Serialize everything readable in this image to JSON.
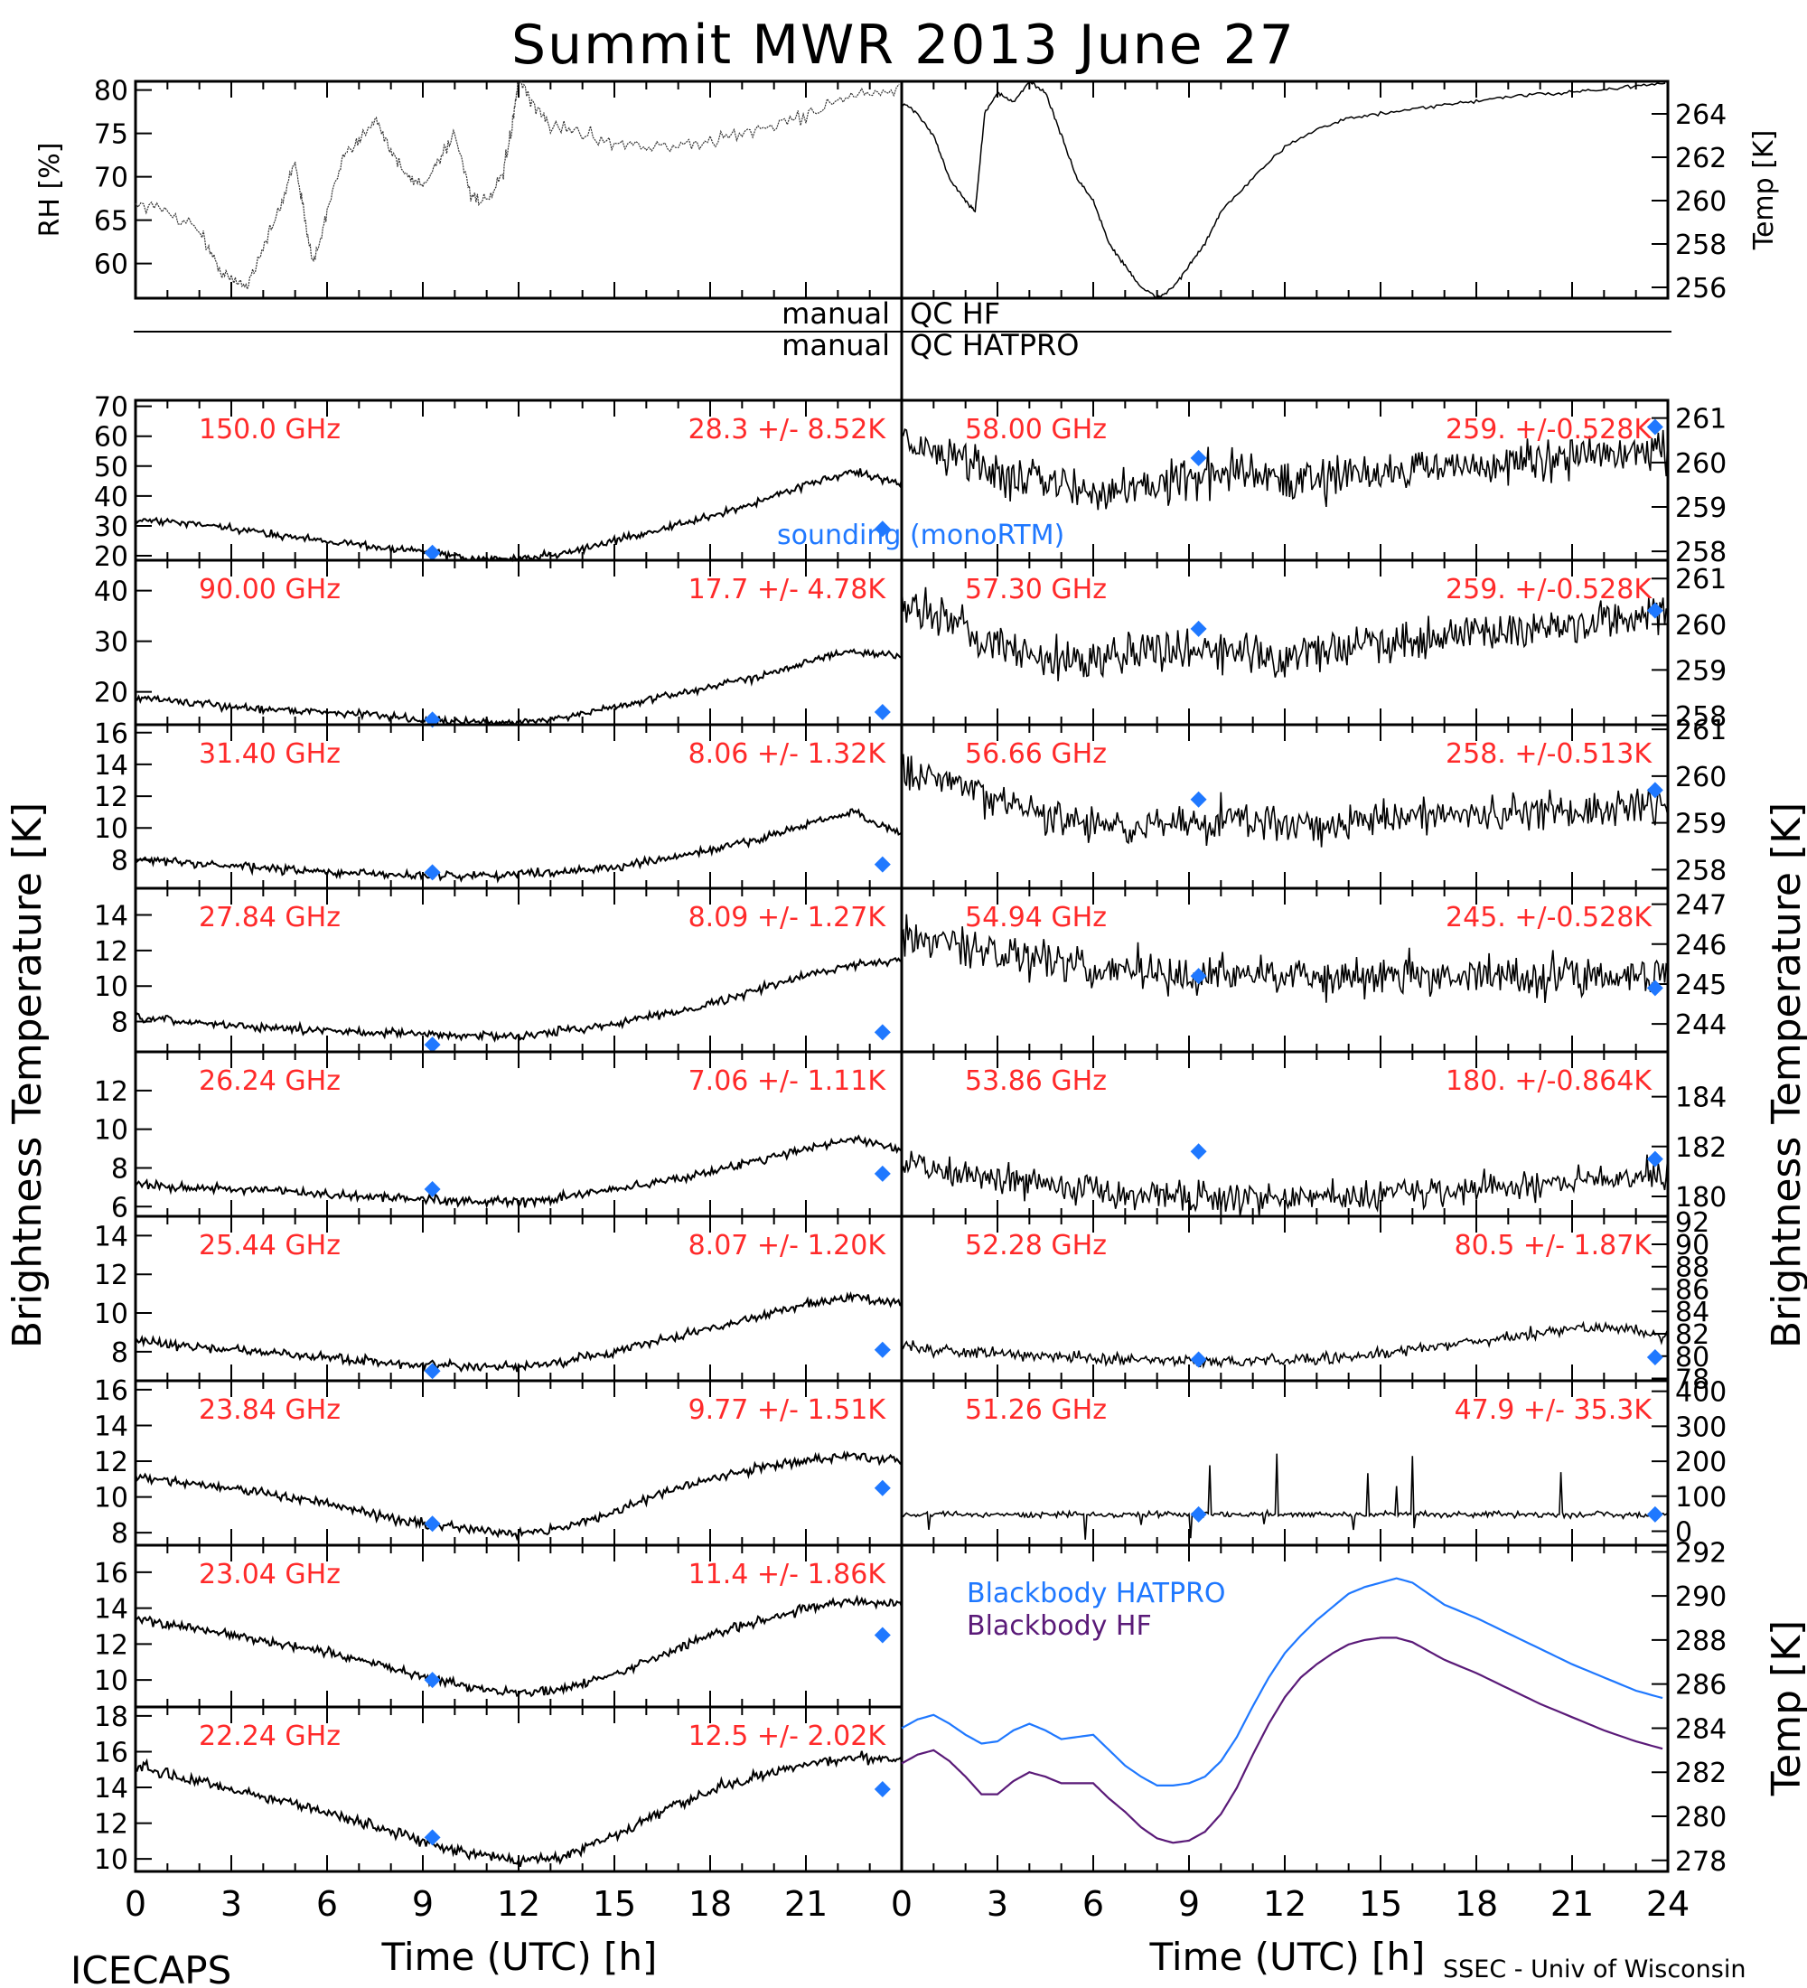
{
  "title": "Summit MWR 2013 June 27",
  "left_ylabel": "Brightness Temperature [K]",
  "right_ylabel": "Brightness Temperature [K]",
  "footer": {
    "left": "ICECAPS",
    "xlabel": "Time (UTC) [h]",
    "credit": "SSEC - Univ of Wisconsin"
  },
  "qc": {
    "manual_left_1": "manual",
    "qc_right_1": "QC HF",
    "manual_left_2": "manual",
    "qc_right_2": "QC HATPRO"
  },
  "sounding_label": "sounding (monoRTM)",
  "colors": {
    "trace": "#000000",
    "label": "#ff2a2a",
    "sounding": "#1f78ff",
    "bb_hatpro": "#1f78ff",
    "bb_hf": "#5a1a78"
  },
  "chart_data": [
    {
      "type": "line",
      "id": "rh",
      "ylabel": "RH [%]",
      "ylim": [
        56,
        81
      ],
      "yticks": [
        "60",
        "65",
        "70",
        "75",
        "80"
      ],
      "xlim": [
        0,
        24
      ],
      "x": [
        0,
        1,
        2,
        2.5,
        3,
        3.5,
        4,
        4.5,
        5,
        5.3,
        5.6,
        6,
        6.5,
        7,
        7.5,
        8,
        8.5,
        9,
        9.5,
        10,
        10.5,
        11,
        11.5,
        11.8,
        12,
        12.5,
        13,
        14,
        15,
        16,
        17,
        18,
        19,
        20,
        21,
        22,
        23,
        24
      ],
      "values": [
        67,
        66,
        64,
        60,
        58,
        57.5,
        62,
        66,
        72,
        65,
        60,
        66,
        72,
        74,
        77,
        73,
        70,
        69,
        72,
        75,
        68,
        67,
        70,
        76,
        81,
        78,
        76,
        75,
        74,
        73.5,
        73.5,
        74,
        75,
        76,
        77,
        79,
        79.5,
        80
      ]
    },
    {
      "type": "line",
      "id": "temp",
      "ylabel": "Temp [K]",
      "ylim": [
        255.5,
        265.5
      ],
      "yticks": [
        "256",
        "258",
        "260",
        "262",
        "264"
      ],
      "xlim": [
        0,
        24
      ],
      "x": [
        0,
        0.5,
        1,
        1.5,
        2,
        2.3,
        2.6,
        3,
        3.5,
        4,
        4.5,
        5,
        5.5,
        6,
        6.5,
        7,
        7.5,
        8,
        8.5,
        9,
        9.5,
        10,
        11,
        12,
        13,
        14,
        15,
        16,
        17,
        18,
        19,
        20,
        21,
        22,
        23,
        24
      ],
      "values": [
        264.5,
        264,
        263,
        261,
        260,
        259.5,
        264,
        265,
        264.5,
        265.5,
        265,
        263,
        261,
        260,
        258,
        257,
        256,
        255.5,
        256,
        257,
        258,
        259.5,
        261,
        262.5,
        263.3,
        263.8,
        264,
        264.2,
        264.4,
        264.6,
        264.8,
        264.9,
        265,
        265.1,
        265.3,
        265.4
      ]
    },
    {
      "type": "line",
      "id": "ch150",
      "channel": "150.0 GHz",
      "stats": "28.3 +/-  8.52K",
      "ylim": [
        18.5,
        72
      ],
      "yticks": [
        "20",
        "30",
        "40",
        "50",
        "60",
        "70"
      ],
      "base": [
        32,
        31,
        29,
        27,
        25,
        23,
        21.5,
        19,
        19,
        21,
        25,
        29,
        33,
        38,
        44,
        48,
        44
      ],
      "noise": 1.2,
      "sounding": [
        [
          9.3,
          21
        ],
        [
          23.4,
          29
        ]
      ]
    },
    {
      "type": "line",
      "id": "ch90",
      "channel": "90.00 GHz",
      "stats": "17.7 +/-  4.78K",
      "ylim": [
        13.5,
        46
      ],
      "yticks": [
        "20",
        "30",
        "40"
      ],
      "base": [
        19,
        18,
        17,
        16.5,
        16,
        15.5,
        14.5,
        14,
        14,
        15,
        17,
        19,
        21,
        23,
        26,
        28,
        27
      ],
      "noise": 0.7,
      "sounding": [
        [
          9.3,
          14.5
        ],
        [
          23.4,
          16
        ]
      ]
    },
    {
      "type": "line",
      "id": "ch3140",
      "channel": "31.40 GHz",
      "stats": "8.06 +/- 1.32K",
      "ylim": [
        6.2,
        16.5
      ],
      "yticks": [
        "8",
        "10",
        "12",
        "14",
        "16"
      ],
      "base": [
        8.1,
        7.8,
        7.6,
        7.4,
        7.2,
        7.1,
        7.0,
        7.0,
        7.1,
        7.3,
        7.5,
        8,
        8.6,
        9.3,
        10.2,
        11,
        9.5
      ],
      "noise": 0.25,
      "sounding": [
        [
          9.3,
          7.2
        ],
        [
          23.4,
          7.7
        ]
      ]
    },
    {
      "type": "line",
      "id": "ch2784",
      "channel": "27.84 GHz",
      "stats": "8.09 +/- 1.27K",
      "ylim": [
        6.3,
        15.5
      ],
      "yticks": [
        "8",
        "10",
        "12",
        "14"
      ],
      "base": [
        8.2,
        8.0,
        7.8,
        7.6,
        7.5,
        7.4,
        7.3,
        7.2,
        7.2,
        7.5,
        7.9,
        8.4,
        9,
        9.8,
        10.6,
        11.2,
        11.5
      ],
      "noise": 0.22,
      "sounding": [
        [
          9.3,
          6.7
        ],
        [
          23.4,
          7.4
        ]
      ]
    },
    {
      "type": "line",
      "id": "ch2624",
      "channel": "26.24 GHz",
      "stats": "7.06 +/- 1.11K",
      "ylim": [
        5.5,
        14
      ],
      "yticks": [
        "6",
        "8",
        "10",
        "12"
      ],
      "base": [
        7.2,
        7.0,
        6.9,
        6.8,
        6.6,
        6.5,
        6.4,
        6.3,
        6.2,
        6.5,
        6.9,
        7.3,
        7.8,
        8.4,
        9.0,
        9.5,
        9.0
      ],
      "noise": 0.22,
      "sounding": [
        [
          9.3,
          6.9
        ],
        [
          23.4,
          7.7
        ]
      ]
    },
    {
      "type": "line",
      "id": "ch2544",
      "channel": "25.44 GHz",
      "stats": "8.07 +/- 1.20K",
      "ylim": [
        6.5,
        15
      ],
      "yticks": [
        "8",
        "10",
        "12",
        "14"
      ],
      "base": [
        8.6,
        8.3,
        8.1,
        7.9,
        7.7,
        7.5,
        7.3,
        7.2,
        7.2,
        7.5,
        8,
        8.6,
        9.2,
        9.8,
        10.5,
        10.8,
        10.5
      ],
      "noise": 0.22,
      "sounding": [
        [
          9.3,
          7.0
        ],
        [
          23.4,
          8.1
        ]
      ]
    },
    {
      "type": "line",
      "id": "ch2384",
      "channel": "23.84 GHz",
      "stats": "9.77 +/- 1.51K",
      "ylim": [
        7.3,
        16.5
      ],
      "yticks": [
        "8",
        "10",
        "12",
        "14",
        "16"
      ],
      "base": [
        11.2,
        10.8,
        10.5,
        10.1,
        9.6,
        9.0,
        8.5,
        8.2,
        8.0,
        8.3,
        9.2,
        10.2,
        11,
        11.6,
        12.1,
        12.3,
        12.0
      ],
      "noise": 0.25,
      "sounding": [
        [
          9.3,
          8.5
        ],
        [
          23.4,
          10.5
        ]
      ]
    },
    {
      "type": "line",
      "id": "ch2304",
      "channel": "23.04 GHz",
      "stats": "11.4 +/- 1.86K",
      "ylim": [
        8.5,
        17.5
      ],
      "yticks": [
        "10",
        "12",
        "14",
        "16"
      ],
      "base": [
        13.4,
        13.0,
        12.5,
        12.0,
        11.5,
        10.9,
        10.2,
        9.6,
        9.3,
        9.5,
        10.3,
        11.4,
        12.5,
        13.3,
        14,
        14.4,
        14.2
      ],
      "noise": 0.25,
      "sounding": [
        [
          9.3,
          10.0
        ],
        [
          23.4,
          12.5
        ]
      ]
    },
    {
      "type": "line",
      "id": "ch2224",
      "channel": "22.24 GHz",
      "stats": "12.5 +/- 2.02K",
      "ylim": [
        9.3,
        18.5
      ],
      "yticks": [
        "10",
        "12",
        "14",
        "16",
        "18"
      ],
      "base": [
        15.2,
        14.5,
        13.9,
        13.3,
        12.6,
        11.8,
        11.0,
        10.3,
        9.9,
        10.2,
        11.3,
        12.6,
        13.8,
        14.6,
        15.3,
        15.7,
        15.6
      ],
      "noise": 0.3,
      "sounding": [
        [
          9.3,
          11.2
        ],
        [
          23.4,
          13.9
        ]
      ]
    },
    {
      "type": "line",
      "id": "ch5800",
      "channel": "58.00 GHz",
      "stats": "259. +/-0.528K",
      "ylim": [
        257.8,
        261.4
      ],
      "yticks": [
        "258",
        "259",
        "260",
        "261"
      ],
      "base": [
        260.6,
        260.2,
        259.8,
        259.6,
        259.3,
        259.5,
        259.7,
        259.8,
        259.6,
        259.7,
        259.8,
        259.9,
        259.9,
        260.0,
        260.1,
        260.2,
        260.3
      ],
      "noise": 0.45,
      "sounding": [
        [
          9.3,
          260.1
        ],
        [
          23.6,
          260.8
        ]
      ]
    },
    {
      "type": "line",
      "id": "ch5730",
      "channel": "57.30 GHz",
      "stats": "259. +/-0.528K",
      "ylim": [
        257.8,
        261.4
      ],
      "yticks": [
        "258",
        "259",
        "260",
        "261"
      ],
      "base": [
        260.4,
        260.0,
        259.6,
        259.3,
        259.2,
        259.4,
        259.5,
        259.4,
        259.3,
        259.5,
        259.6,
        259.7,
        259.8,
        259.9,
        260.0,
        260.1,
        260.2
      ],
      "noise": 0.45,
      "sounding": [
        [
          9.3,
          259.9
        ],
        [
          23.6,
          260.3
        ]
      ]
    },
    {
      "type": "line",
      "id": "ch5666",
      "channel": "56.66 GHz",
      "stats": "258. +/-0.513K",
      "ylim": [
        257.6,
        261.1
      ],
      "yticks": [
        "258",
        "259",
        "260",
        "261"
      ],
      "base": [
        260.1,
        259.8,
        259.5,
        259.2,
        258.9,
        258.9,
        259.0,
        259.1,
        259.0,
        259.0,
        259.1,
        259.1,
        259.2,
        259.2,
        259.3,
        259.3,
        259.4
      ],
      "noise": 0.4,
      "sounding": [
        [
          9.3,
          259.5
        ],
        [
          23.6,
          259.7
        ]
      ]
    },
    {
      "type": "line",
      "id": "ch5494",
      "channel": "54.94 GHz",
      "stats": "245. +/-0.528K",
      "ylim": [
        243.3,
        247.4
      ],
      "yticks": [
        "244",
        "245",
        "246",
        "247"
      ],
      "base": [
        246.3,
        246.0,
        245.8,
        245.6,
        245.4,
        245.3,
        245.2,
        245.3,
        245.2,
        245.2,
        245.2,
        245.2,
        245.3,
        245.2,
        245.2,
        245.2,
        245.3
      ],
      "noise": 0.5,
      "sounding": [
        [
          9.3,
          245.2
        ],
        [
          23.6,
          244.9
        ]
      ]
    },
    {
      "type": "line",
      "id": "ch5386",
      "channel": "53.86 GHz",
      "stats": "180. +/-0.864K",
      "ylim": [
        179.2,
        185.8
      ],
      "yticks": [
        "180",
        "182",
        "184"
      ],
      "base": [
        181.4,
        181.0,
        180.7,
        180.5,
        180.3,
        180.1,
        180.0,
        180.0,
        179.9,
        180.0,
        180.1,
        180.2,
        180.3,
        180.4,
        180.6,
        180.8,
        181.0
      ],
      "noise": 0.6,
      "sounding": [
        [
          9.3,
          181.8
        ],
        [
          23.6,
          181.5
        ]
      ]
    },
    {
      "type": "line",
      "id": "ch5228",
      "channel": "52.28 GHz",
      "stats": "80.5 +/-  1.87K",
      "ylim": [
        77.8,
        92.5
      ],
      "yticks": [
        "78",
        "80",
        "82",
        "84",
        "86",
        "88",
        "90",
        "92"
      ],
      "base": [
        80.8,
        80.5,
        80.2,
        80.0,
        79.8,
        79.7,
        79.6,
        79.5,
        79.6,
        79.8,
        80.2,
        80.8,
        81.3,
        81.9,
        82.5,
        82.6,
        81.5
      ],
      "noise": 0.5,
      "sounding": [
        [
          9.3,
          79.7
        ],
        [
          23.6,
          79.9
        ]
      ]
    },
    {
      "type": "line",
      "id": "ch5126",
      "channel": "51.26 GHz",
      "stats": "47.9 +/-  35.3K",
      "ylim": [
        -40,
        430
      ],
      "yticks": [
        "0",
        "100",
        "200",
        "300",
        "400"
      ],
      "base": [
        48,
        48,
        48,
        48,
        48,
        48,
        48,
        48,
        48,
        48,
        48,
        48,
        48,
        48,
        48,
        48,
        48
      ],
      "noise": 8,
      "sounding": [
        [
          9.3,
          48
        ],
        [
          23.6,
          48
        ]
      ]
    },
    {
      "type": "line",
      "id": "bb",
      "ylabel": "Temp [K]",
      "ylim": [
        277.5,
        292.3
      ],
      "yticks": [
        "278",
        "280",
        "282",
        "284",
        "286",
        "288",
        "290",
        "292"
      ],
      "legend": [
        "Blackbody HATPRO",
        "Blackbody HF"
      ],
      "x": [
        0,
        0.5,
        1,
        1.5,
        2,
        2.5,
        3,
        3.5,
        4,
        4.5,
        5,
        5.5,
        6,
        6.5,
        7,
        7.5,
        8,
        8.5,
        9,
        9.5,
        10,
        10.5,
        11,
        11.5,
        12,
        12.5,
        13,
        13.5,
        14,
        14.5,
        15,
        15.5,
        16,
        16.5,
        17,
        18,
        19,
        20,
        21,
        22,
        23,
        24
      ],
      "series": [
        {
          "name": "Blackbody HATPRO",
          "values": [
            284,
            284.4,
            284.6,
            284.2,
            283.7,
            283.3,
            283.4,
            283.9,
            284.2,
            283.9,
            283.5,
            283.6,
            283.7,
            283.0,
            282.3,
            281.8,
            281.4,
            281.4,
            281.5,
            281.8,
            282.5,
            283.6,
            285,
            286.3,
            287.4,
            288.2,
            288.9,
            289.5,
            290.1,
            290.4,
            290.6,
            290.8,
            290.6,
            290.1,
            289.6,
            289,
            288.3,
            287.6,
            286.9,
            286.3,
            285.7,
            285.3
          ]
        },
        {
          "name": "Blackbody HF",
          "values": [
            282.4,
            282.8,
            283.0,
            282.5,
            281.8,
            281.0,
            281.0,
            281.6,
            282.0,
            281.8,
            281.5,
            281.5,
            281.5,
            280.8,
            280.2,
            279.5,
            279.0,
            278.8,
            278.9,
            279.3,
            280.1,
            281.3,
            282.8,
            284.2,
            285.4,
            286.3,
            286.9,
            287.4,
            287.8,
            288.0,
            288.1,
            288.1,
            287.9,
            287.5,
            287.1,
            286.5,
            285.8,
            285.1,
            284.5,
            283.9,
            283.4,
            283.0
          ]
        }
      ]
    }
  ],
  "x_ticks": [
    "0",
    "3",
    "6",
    "9",
    "12",
    "15",
    "18",
    "21",
    "0",
    "3",
    "6",
    "9",
    "12",
    "15",
    "18",
    "21",
    "24"
  ]
}
